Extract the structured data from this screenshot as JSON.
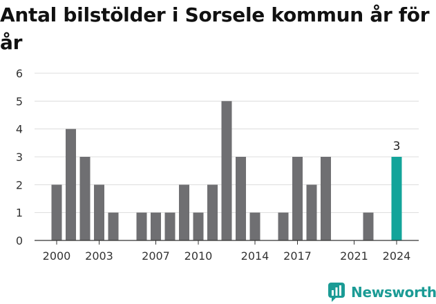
{
  "title": "Antal bilstölder i Sorsele kommun år för år",
  "chart_data": {
    "type": "bar",
    "x": [
      2000,
      2001,
      2002,
      2003,
      2004,
      2005,
      2006,
      2007,
      2008,
      2009,
      2010,
      2011,
      2012,
      2013,
      2014,
      2015,
      2016,
      2017,
      2018,
      2019,
      2020,
      2021,
      2022,
      2023,
      2024
    ],
    "values": [
      2,
      4,
      3,
      2,
      1,
      0,
      1,
      1,
      1,
      2,
      1,
      2,
      5,
      3,
      1,
      0,
      1,
      3,
      2,
      3,
      0,
      0,
      1,
      0,
      3
    ],
    "xticks": [
      2000,
      2003,
      2007,
      2010,
      2014,
      2017,
      2021,
      2024
    ],
    "yticks": [
      0,
      1,
      2,
      3,
      4,
      5,
      6
    ],
    "ylim": [
      0,
      6
    ],
    "grid": true,
    "bar_color": "#6f6f72",
    "highlight": {
      "x": 2024,
      "color": "#13a49a",
      "label": "3"
    },
    "xlabel": "",
    "ylabel": ""
  },
  "brand": {
    "name": "Newsworthy",
    "icon": "newsworthy-logo-icon",
    "color": "#1b9b95"
  }
}
